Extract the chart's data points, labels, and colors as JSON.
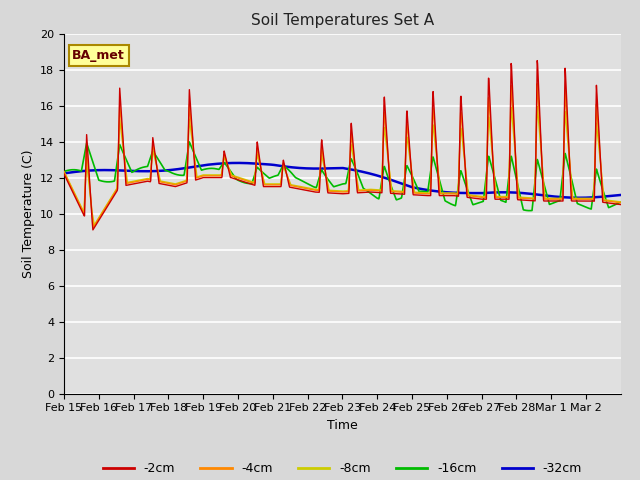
{
  "title": "Soil Temperatures Set A",
  "xlabel": "Time",
  "ylabel": "Soil Temperature (C)",
  "ylim": [
    0,
    20
  ],
  "background_color": "#e0e0e0",
  "fig_bg": "#d8d8d8",
  "annotation_text": "BA_met",
  "annotation_bg": "#ffff99",
  "annotation_border": "#aa8800",
  "series": {
    "-2cm": {
      "color": "#cc0000",
      "lw": 1.0
    },
    "-4cm": {
      "color": "#ff8800",
      "lw": 1.0
    },
    "-8cm": {
      "color": "#cccc00",
      "lw": 1.0
    },
    "-16cm": {
      "color": "#00bb00",
      "lw": 1.2
    },
    "-32cm": {
      "color": "#0000cc",
      "lw": 1.8
    }
  },
  "date_labels": [
    "Feb 15",
    "Feb 16",
    "Feb 17",
    "Feb 18",
    "Feb 19",
    "Feb 20",
    "Feb 21",
    "Feb 22",
    "Feb 23",
    "Feb 24",
    "Feb 25",
    "Feb 26",
    "Feb 27",
    "Feb 28",
    "Mar 1",
    "Mar 2"
  ]
}
